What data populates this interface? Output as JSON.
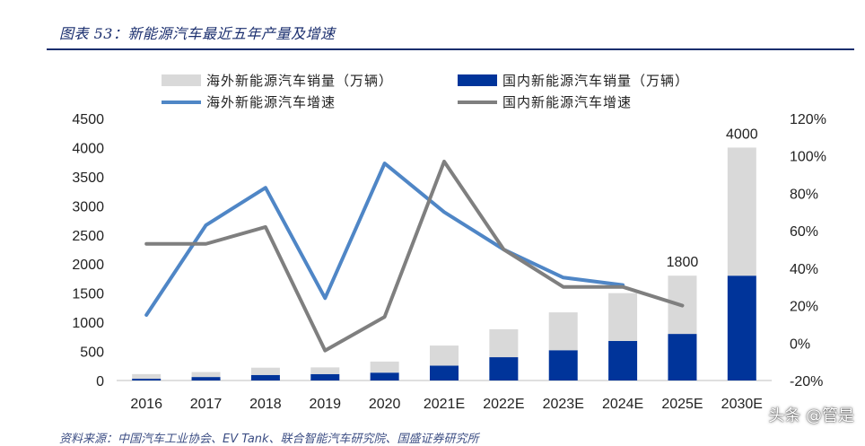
{
  "figure": {
    "title": "图表 53：新能源汽车最近五年产量及增速",
    "source": "资料来源：中国汽车工业协会、EV Tank、联合智能汽车研究院、国盛证券研究所",
    "watermark": "头条 @管是"
  },
  "colors": {
    "overseas_bar": "#d9d9d9",
    "domestic_bar": "#00349a",
    "overseas_line": "#4f86c6",
    "domestic_line": "#7f7f7f",
    "title_color": "#1a2e6e"
  },
  "chart_data": {
    "type": "bar",
    "categories": [
      "2016",
      "2017",
      "2018",
      "2019",
      "2020",
      "2021E",
      "2022E",
      "2023E",
      "2024E",
      "2025E",
      "2030E"
    ],
    "left_ylim": [
      0,
      4500
    ],
    "left_yticks": [
      0,
      500,
      1000,
      1500,
      2000,
      2500,
      3000,
      3500,
      4000,
      4500
    ],
    "right_ylim": [
      -20,
      120
    ],
    "right_yticks": [
      "-20%",
      "0%",
      "20%",
      "40%",
      "60%",
      "80%",
      "100%",
      "120%"
    ],
    "right_ytick_values": [
      -20,
      0,
      20,
      40,
      60,
      80,
      100,
      120
    ],
    "stacked_bars": [
      {
        "name": "国内新能源汽车销量（万辆）",
        "values": [
          30,
          60,
          95,
          110,
          135,
          255,
          400,
          520,
          680,
          800,
          1800
        ]
      },
      {
        "name": "海外新能源汽车销量（万辆）",
        "values": [
          80,
          85,
          125,
          115,
          190,
          345,
          480,
          650,
          820,
          1000,
          2200
        ]
      }
    ],
    "lines": [
      {
        "name": "海外新能源汽车增速",
        "axis": "right",
        "values": [
          15,
          63,
          83,
          24,
          96,
          70,
          50,
          35,
          31,
          null,
          null
        ]
      },
      {
        "name": "国内新能源汽车增速",
        "axis": "right",
        "values": [
          53,
          53,
          62,
          -4,
          14,
          97,
          50,
          30,
          30,
          20,
          null
        ]
      }
    ],
    "data_labels": [
      {
        "category": "2025E",
        "text": "1800"
      },
      {
        "category": "2030E",
        "text": "4000"
      }
    ],
    "legend": [
      {
        "name": "海外新能源汽车销量（万辆）",
        "kind": "bar",
        "color_key": "overseas_bar"
      },
      {
        "name": "国内新能源汽车销量（万辆）",
        "kind": "bar",
        "color_key": "domestic_bar"
      },
      {
        "name": "海外新能源汽车增速",
        "kind": "line",
        "color_key": "overseas_line"
      },
      {
        "name": "国内新能源汽车增速",
        "kind": "line",
        "color_key": "domestic_line"
      }
    ],
    "legend_position": "top",
    "grid": false
  }
}
